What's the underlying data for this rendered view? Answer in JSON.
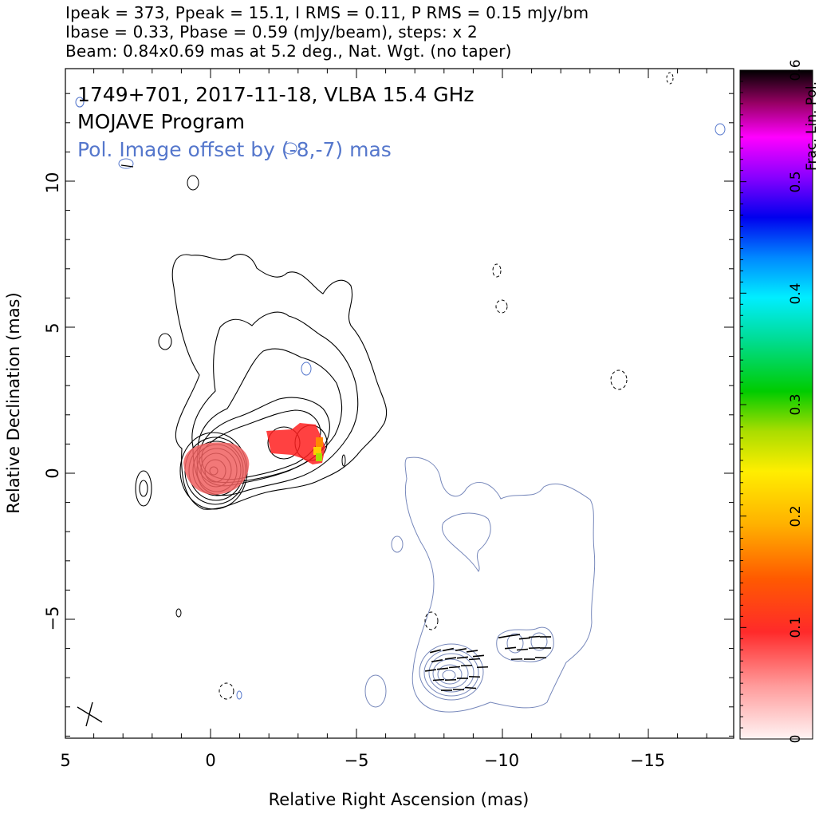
{
  "header": {
    "line1": "Ipeak = 373, Ppeak = 15.1, I RMS = 0.11, P RMS = 0.15 mJy/bm",
    "line2": "Ibase = 0.33, Pbase = 0.59 (mJy/beam), steps: x 2",
    "line3": "Beam: 0.84x0.69 mas at 5.2 deg., Nat. Wgt. (no taper)"
  },
  "annotations": {
    "source": "1749+701, 2017-11-18, VLBA 15.4 GHz",
    "program": "MOJAVE Program",
    "pol_offset": "Pol. Image offset by (-8,-7) mas"
  },
  "colors": {
    "pol_text": "#5577cc",
    "pol_contour": "#7788bb",
    "stokes_contour": "#000000",
    "frac_pol_fill": "#f06060"
  },
  "chart_data": {
    "type": "contour map",
    "xlabel": "Relative Right Ascension (mas)",
    "ylabel": "Relative Declination (mas)",
    "xlim": [
      5,
      -18
    ],
    "ylim": [
      -9,
      13.8
    ],
    "x_ticks": [
      "5",
      "0",
      "−5",
      "−10",
      "−15"
    ],
    "y_ticks": [
      "10",
      "5",
      "0",
      "−5"
    ],
    "colorbar": {
      "label": "Frac. Lin. Pol.",
      "range": [
        0,
        0.6
      ],
      "ticks": [
        "0",
        "0.1",
        "0.2",
        "0.3",
        "0.4",
        "0.5",
        "0.6"
      ]
    },
    "core": {
      "ra": 0,
      "dec": 0,
      "contour_radii_mas": [
        0.45,
        0.8,
        1.0,
        1.2,
        1.4,
        1.6,
        1.8,
        2.0
      ]
    },
    "pol_core": {
      "ra": -8,
      "dec": -7
    },
    "pol_knot": {
      "ra": -10.6,
      "dec": -6.0
    }
  }
}
